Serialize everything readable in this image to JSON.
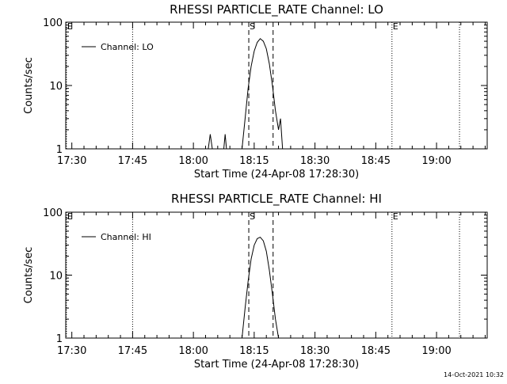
{
  "chart_data": [
    {
      "type": "line",
      "title": "RHESSI PARTICLE_RATE Channel: LO",
      "xlabel": "Start Time (24-Apr-08 17:28:30)",
      "ylabel": "Counts/sec",
      "yscale": "log",
      "ylim": [
        1,
        100
      ],
      "xlim": [
        "17:28:30",
        "19:12:30"
      ],
      "x_ticks": [
        "17:30",
        "17:45",
        "18:00",
        "18:15",
        "18:30",
        "18:45",
        "19:00"
      ],
      "y_ticks": [
        "1",
        "10",
        "100"
      ],
      "legend": {
        "position": "top-left",
        "entries": [
          "Channel: LO"
        ]
      },
      "series": [
        {
          "name": "Channel: LO",
          "points": [
            [
              "17:28:30",
              1.0
            ],
            [
              "18:03:40",
              1.0
            ],
            [
              "18:04:10",
              1.7
            ],
            [
              "18:04:40",
              1.0
            ],
            [
              "18:07:30",
              1.0
            ],
            [
              "18:07:50",
              1.7
            ],
            [
              "18:08:10",
              1.0
            ],
            [
              "18:12:00",
              1.0
            ],
            [
              "18:12:45",
              3.0
            ],
            [
              "18:13:30",
              9.0
            ],
            [
              "18:14:15",
              20.0
            ],
            [
              "18:15:00",
              35.0
            ],
            [
              "18:15:45",
              48.0
            ],
            [
              "18:16:30",
              55.0
            ],
            [
              "18:17:15",
              50.0
            ],
            [
              "18:18:00",
              38.0
            ],
            [
              "18:18:45",
              22.0
            ],
            [
              "18:19:30",
              10.0
            ],
            [
              "18:20:15",
              4.0
            ],
            [
              "18:21:00",
              2.0
            ],
            [
              "18:21:30",
              3.0
            ],
            [
              "18:22:00",
              1.0
            ],
            [
              "19:12:30",
              1.0
            ]
          ]
        }
      ],
      "markers": [
        {
          "time": "17:28:40",
          "label": "E",
          "style": "dotted"
        },
        {
          "time": "17:45:00",
          "label": "",
          "style": "dotted"
        },
        {
          "time": "18:13:40",
          "label": "S",
          "style": "dashed"
        },
        {
          "time": "18:19:40",
          "label": "",
          "style": "dashed"
        },
        {
          "time": "18:49:00",
          "label": "E",
          "style": "dotted"
        },
        {
          "time": "19:05:40",
          "label": "",
          "style": "dotted"
        }
      ]
    },
    {
      "type": "line",
      "title": "RHESSI PARTICLE_RATE Channel: HI",
      "xlabel": "Start Time (24-Apr-08 17:28:30)",
      "ylabel": "Counts/sec",
      "yscale": "log",
      "ylim": [
        1,
        100
      ],
      "xlim": [
        "17:28:30",
        "19:12:30"
      ],
      "x_ticks": [
        "17:30",
        "17:45",
        "18:00",
        "18:15",
        "18:30",
        "18:45",
        "19:00"
      ],
      "y_ticks": [
        "1",
        "10",
        "100"
      ],
      "legend": {
        "position": "top-left",
        "entries": [
          "Channel: HI"
        ]
      },
      "series": [
        {
          "name": "Channel: HI",
          "points": [
            [
              "18:12:00",
              1.0
            ],
            [
              "18:12:45",
              3.0
            ],
            [
              "18:13:30",
              8.0
            ],
            [
              "18:14:15",
              18.0
            ],
            [
              "18:15:00",
              30.0
            ],
            [
              "18:15:45",
              38.0
            ],
            [
              "18:16:30",
              40.0
            ],
            [
              "18:17:15",
              35.0
            ],
            [
              "18:18:00",
              24.0
            ],
            [
              "18:18:45",
              12.0
            ],
            [
              "18:19:30",
              5.0
            ],
            [
              "18:20:15",
              2.0
            ],
            [
              "18:21:00",
              1.0
            ]
          ]
        }
      ],
      "markers": [
        {
          "time": "17:28:40",
          "label": "E",
          "style": "dotted"
        },
        {
          "time": "17:45:00",
          "label": "",
          "style": "dotted"
        },
        {
          "time": "18:13:40",
          "label": "S",
          "style": "dashed"
        },
        {
          "time": "18:19:40",
          "label": "",
          "style": "dashed"
        },
        {
          "time": "18:49:00",
          "label": "E",
          "style": "dotted"
        },
        {
          "time": "19:05:40",
          "label": "",
          "style": "dotted"
        }
      ]
    }
  ],
  "footer_timestamp": "14-Oct-2021 10:32"
}
